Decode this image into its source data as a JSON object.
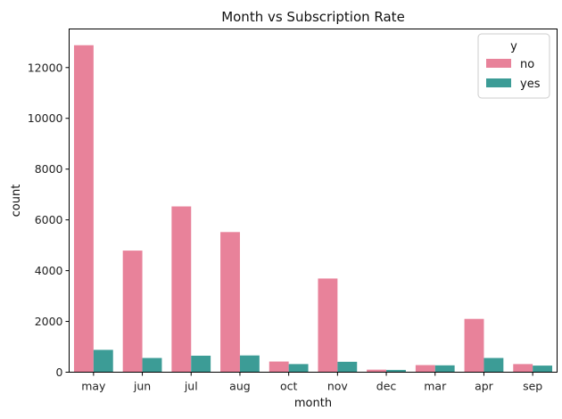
{
  "chart_data": {
    "type": "bar",
    "title": "Month vs Subscription Rate",
    "xlabel": "month",
    "ylabel": "count",
    "categories": [
      "may",
      "jun",
      "jul",
      "aug",
      "oct",
      "nov",
      "dec",
      "mar",
      "apr",
      "sep"
    ],
    "series": [
      {
        "name": "no",
        "color": "#e8829a",
        "values": [
          12880,
          4790,
          6530,
          5520,
          420,
          3690,
          100,
          280,
          2100,
          320
        ]
      },
      {
        "name": "yes",
        "color": "#3c9c96",
        "values": [
          880,
          560,
          650,
          660,
          320,
          410,
          90,
          270,
          560,
          260
        ]
      }
    ],
    "yticks": [
      0,
      2000,
      4000,
      6000,
      8000,
      10000,
      12000
    ],
    "ylim": [
      0,
      13520
    ],
    "legend": {
      "title": "y",
      "position": "top-right"
    },
    "grid": false
  }
}
